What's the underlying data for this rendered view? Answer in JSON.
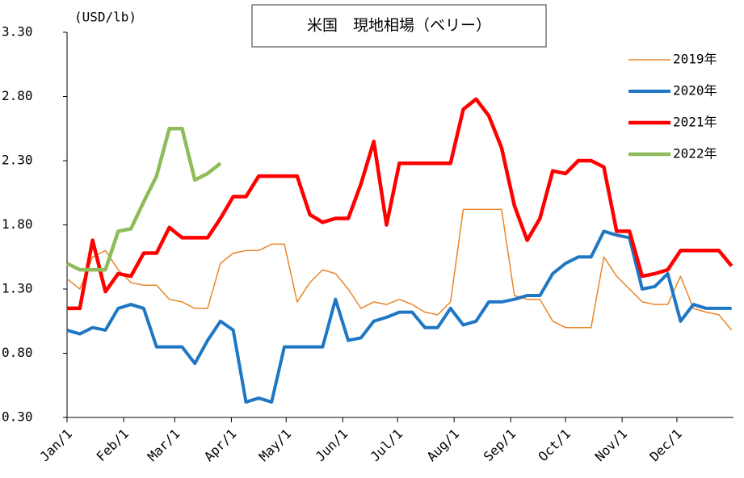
{
  "chart_data": {
    "type": "line",
    "title": "米国　現地相場（ベリー）",
    "y_unit": "(USD/lb)",
    "x": [
      0,
      7,
      14,
      21,
      28,
      35,
      42,
      49,
      56,
      63,
      70,
      77,
      84,
      91,
      98,
      105,
      112,
      119,
      126,
      133,
      140,
      147,
      154,
      161,
      168,
      175,
      182,
      189,
      196,
      203,
      210,
      217,
      224,
      231,
      238,
      245,
      252,
      259,
      266,
      273,
      280,
      287,
      294,
      301,
      308,
      315,
      322,
      329,
      336,
      343,
      350,
      357,
      364
    ],
    "xlim": [
      0,
      365
    ],
    "xticks": [
      {
        "value": 0,
        "label": "Jan/1"
      },
      {
        "value": 31,
        "label": "Feb/1"
      },
      {
        "value": 59,
        "label": "Mar/1"
      },
      {
        "value": 90,
        "label": "Apr/1"
      },
      {
        "value": 120,
        "label": "May/1"
      },
      {
        "value": 151,
        "label": "Jun/1"
      },
      {
        "value": 181,
        "label": "Jul/1"
      },
      {
        "value": 212,
        "label": "Aug/1"
      },
      {
        "value": 243,
        "label": "Sep/1"
      },
      {
        "value": 273,
        "label": "Oct/1"
      },
      {
        "value": 304,
        "label": "Nov/1"
      },
      {
        "value": 334,
        "label": "Dec/1"
      }
    ],
    "ylim": [
      0.3,
      3.3
    ],
    "yticks": [
      {
        "value": 0.3,
        "label": "0.30"
      },
      {
        "value": 0.8,
        "label": "0.80"
      },
      {
        "value": 1.3,
        "label": "1.30"
      },
      {
        "value": 1.8,
        "label": "1.80"
      },
      {
        "value": 2.3,
        "label": "2.30"
      },
      {
        "value": 2.8,
        "label": "2.80"
      },
      {
        "value": 3.3,
        "label": "3.30"
      }
    ],
    "grid": false,
    "legend": "upper right",
    "series": [
      {
        "name": "2019年",
        "color": "#e9862a",
        "width": 1.5,
        "values": [
          1.38,
          1.3,
          1.55,
          1.6,
          1.45,
          1.35,
          1.33,
          1.33,
          1.22,
          1.2,
          1.15,
          1.15,
          1.5,
          1.58,
          1.6,
          1.6,
          1.65,
          1.65,
          1.2,
          1.35,
          1.45,
          1.42,
          1.3,
          1.15,
          1.2,
          1.18,
          1.22,
          1.18,
          1.12,
          1.1,
          1.2,
          1.92,
          1.92,
          1.92,
          1.92,
          1.25,
          1.22,
          1.22,
          1.05,
          1.0,
          1.0,
          1.0,
          1.55,
          1.4,
          1.3,
          1.2,
          1.18,
          1.18,
          1.4,
          1.15,
          1.12,
          1.1,
          0.98
        ]
      },
      {
        "name": "2020年",
        "color": "#1f77c4",
        "width": 4,
        "values": [
          0.98,
          0.95,
          1.0,
          0.98,
          1.15,
          1.18,
          1.15,
          0.85,
          0.85,
          0.85,
          0.72,
          0.9,
          1.05,
          0.98,
          0.42,
          0.45,
          0.42,
          0.85,
          0.85,
          0.85,
          0.85,
          1.22,
          0.9,
          0.92,
          1.05,
          1.08,
          1.12,
          1.12,
          1.0,
          1.0,
          1.15,
          1.02,
          1.05,
          1.2,
          1.2,
          1.22,
          1.25,
          1.25,
          1.42,
          1.5,
          1.55,
          1.55,
          1.75,
          1.72,
          1.7,
          1.3,
          1.32,
          1.42,
          1.05,
          1.18,
          1.15,
          1.15,
          1.15
        ]
      },
      {
        "name": "2021年",
        "color": "#ff0000",
        "width": 4.5,
        "values": [
          1.15,
          1.15,
          1.68,
          1.28,
          1.42,
          1.4,
          1.58,
          1.58,
          1.78,
          1.7,
          1.7,
          1.7,
          1.85,
          2.02,
          2.02,
          2.18,
          2.18,
          2.18,
          2.18,
          1.88,
          1.82,
          1.85,
          1.85,
          2.12,
          2.45,
          1.8,
          2.28,
          2.28,
          2.28,
          2.28,
          2.28,
          2.7,
          2.78,
          2.65,
          2.4,
          1.95,
          1.68,
          1.85,
          2.22,
          2.2,
          2.3,
          2.3,
          2.25,
          1.75,
          1.75,
          1.4,
          1.42,
          1.45,
          1.6,
          1.6,
          1.6,
          1.6,
          1.48
        ]
      },
      {
        "name": "2022年",
        "color": "#8fbc5a",
        "width": 4.5,
        "values": [
          1.5,
          1.45,
          1.45,
          1.45,
          1.75,
          1.77,
          1.98,
          2.18,
          2.55,
          2.55,
          2.15,
          2.2,
          2.28,
          null,
          null,
          null,
          null,
          null,
          null,
          null,
          null,
          null,
          null,
          null,
          null,
          null,
          null,
          null,
          null,
          null,
          null,
          null,
          null,
          null,
          null,
          null,
          null,
          null,
          null,
          null,
          null,
          null,
          null,
          null,
          null,
          null,
          null,
          null,
          null,
          null,
          null,
          null,
          null
        ]
      }
    ]
  }
}
